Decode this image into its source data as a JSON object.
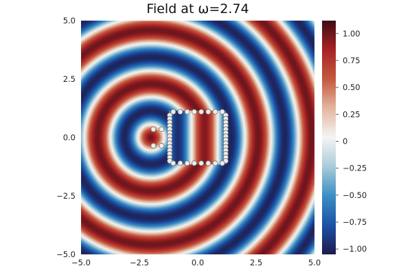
{
  "chart_data": {
    "type": "heatmap",
    "title": "Field at ω=2.74",
    "xlabel": "",
    "ylabel": "",
    "xlim": [
      -5,
      5
    ],
    "ylim": [
      -5,
      5
    ],
    "x_ticks": [
      "−5.0",
      "−2.5",
      "0.0",
      "2.5",
      "5.0"
    ],
    "x_tick_values": [
      -5,
      -2.5,
      0,
      2.5,
      5
    ],
    "y_ticks": [
      "−5.0",
      "−2.5",
      "0.0",
      "2.5",
      "5.0"
    ],
    "y_tick_values": [
      -5,
      -2.5,
      0,
      2.5,
      5
    ],
    "colorbar": {
      "range": [
        -1.05,
        1.12
      ],
      "ticks": [
        "1.00",
        "0.75",
        "0.50",
        "0.25",
        "0",
        "−0.25",
        "−0.50",
        "−0.75",
        "−1.00"
      ],
      "tick_values": [
        1.0,
        0.75,
        0.5,
        0.25,
        0,
        -0.25,
        -0.5,
        -0.75,
        -1.0
      ]
    },
    "colormap": [
      "#1d1b4c",
      "#1c52a8",
      "#3b8fc4",
      "#a9cbd9",
      "#f5f5f5",
      "#e3b7a0",
      "#c55a3e",
      "#a82327",
      "#3f0d13"
    ],
    "field": {
      "omega": 2.74,
      "source": [
        -2.0,
        0.0
      ],
      "amplitude": 1.0
    },
    "scatterers": [
      [
        -1.9,
        0.35
      ],
      [
        -1.9,
        -0.35
      ],
      [
        -1.2,
        0.95
      ],
      [
        -1.2,
        0.8
      ],
      [
        -1.2,
        0.65
      ],
      [
        -1.2,
        0.5
      ],
      [
        -1.2,
        0.35
      ],
      [
        -1.2,
        0.2
      ],
      [
        -1.2,
        0.05
      ],
      [
        -1.2,
        -0.1
      ],
      [
        -1.2,
        -0.25
      ],
      [
        -1.2,
        -0.4
      ],
      [
        -1.2,
        -0.55
      ],
      [
        -1.2,
        -0.7
      ],
      [
        -1.2,
        -0.85
      ],
      [
        -1.2,
        -1.0
      ],
      [
        1.2,
        0.95
      ],
      [
        1.2,
        0.8
      ],
      [
        1.2,
        0.65
      ],
      [
        1.2,
        0.5
      ],
      [
        1.2,
        0.35
      ],
      [
        1.2,
        0.2
      ],
      [
        1.2,
        0.05
      ],
      [
        1.2,
        -0.1
      ],
      [
        1.2,
        -0.25
      ],
      [
        1.2,
        -0.4
      ],
      [
        1.2,
        -0.55
      ],
      [
        1.2,
        -0.7
      ],
      [
        1.2,
        -0.85
      ],
      [
        1.2,
        -1.0
      ],
      [
        -1.05,
        1.1
      ],
      [
        -0.75,
        1.1
      ],
      [
        -0.45,
        1.1
      ],
      [
        -0.15,
        1.1
      ],
      [
        0.15,
        1.1
      ],
      [
        0.45,
        1.1
      ],
      [
        0.75,
        1.1
      ],
      [
        1.05,
        1.1
      ],
      [
        -1.05,
        -1.1
      ],
      [
        -0.75,
        -1.1
      ],
      [
        -0.45,
        -1.1
      ],
      [
        -0.15,
        -1.1
      ],
      [
        0.15,
        -1.1
      ],
      [
        0.45,
        -1.1
      ],
      [
        0.75,
        -1.1
      ],
      [
        1.05,
        -1.1
      ],
      [
        -1.55,
        0.35
      ],
      [
        -1.55,
        -0.35
      ]
    ]
  }
}
